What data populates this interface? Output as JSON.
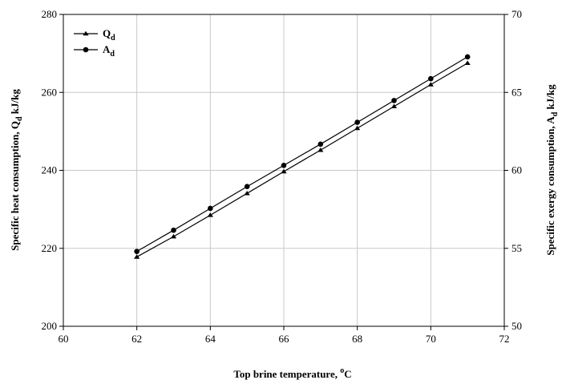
{
  "chart_data": {
    "type": "line",
    "x": [
      62,
      63,
      64,
      65,
      66,
      67,
      68,
      69,
      70,
      71
    ],
    "xlabel": {
      "text": "Top brine temperature, ",
      "sup": "o",
      "tail": "C"
    },
    "ylabel_left": {
      "pre": "Specific heat consumption,  Q",
      "sub": "d",
      "post": "  kJ/kg"
    },
    "ylabel_right": {
      "pre": "Specific exergy consumption, A",
      "sub": "d",
      "post": "  kJ/kg"
    },
    "xlim": [
      60,
      72
    ],
    "ylim_left": [
      200,
      280
    ],
    "ylim_right": [
      50,
      70
    ],
    "xticks": [
      60,
      62,
      64,
      66,
      68,
      70,
      72
    ],
    "yticks_left": [
      200,
      220,
      240,
      260,
      280
    ],
    "yticks_right": [
      50,
      55,
      60,
      65,
      70
    ],
    "grid": true,
    "legend_position": "top-left",
    "series": [
      {
        "name": "Q",
        "name_sub": "d",
        "axis": "left",
        "marker": "triangle",
        "values": [
          217.8,
          223.0,
          228.5,
          234.1,
          239.7,
          245.2,
          250.8,
          256.4,
          262.0,
          267.5
        ]
      },
      {
        "name": "A",
        "name_sub": "d",
        "axis": "right",
        "marker": "circle",
        "values": [
          54.8,
          56.16,
          57.56,
          58.96,
          60.32,
          61.68,
          63.08,
          64.48,
          65.88,
          67.28
        ]
      }
    ]
  }
}
